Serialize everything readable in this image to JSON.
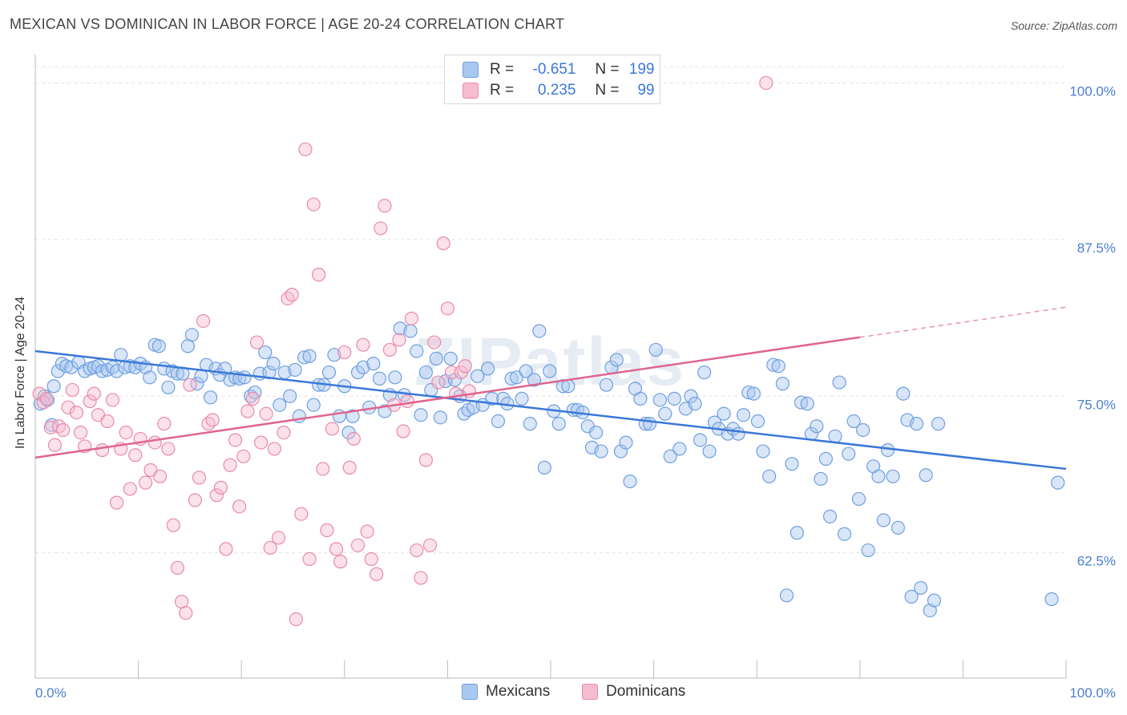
{
  "title": "MEXICAN VS DOMINICAN IN LABOR FORCE | AGE 20-24 CORRELATION CHART",
  "source": "Source: ZipAtlas.com",
  "watermark": "ZIPatlas",
  "legend": {
    "r_label": "R =",
    "n_label": "N =",
    "rows": [
      {
        "r": "-0.651",
        "n": "199",
        "color": "#a9c8f0",
        "border": "#6f9fe0"
      },
      {
        "r": "0.235",
        "n": "99",
        "color": "#f6bcd0",
        "border": "#e98aab"
      }
    ]
  },
  "bottom_legend": [
    "Mexicans",
    "Dominicans"
  ],
  "chart_data": {
    "type": "scatter",
    "title": "MEXICAN VS DOMINICAN IN LABOR FORCE | AGE 20-24 CORRELATION CHART",
    "xlabel": "",
    "ylabel": "In Labor Force | Age 20-24",
    "xlim": [
      0,
      100
    ],
    "ylim": [
      52.5,
      101.5
    ],
    "x_tick_labels": [
      "0.0%",
      "100.0%"
    ],
    "y_ticks": [
      62.5,
      75.0,
      87.5,
      100.0
    ],
    "y_tick_labels": [
      "62.5%",
      "75.0%",
      "87.5%",
      "100.0%"
    ],
    "grid": "horizontal dashed",
    "series": [
      {
        "name": "Mexicans",
        "color": "#6f9fe0",
        "fill": "#a9c8f0",
        "line_color": "#3b78d8",
        "r": -0.651,
        "n": 199,
        "trend": {
          "x": [
            0,
            100
          ],
          "y": [
            78.6,
            69.2
          ]
        },
        "points": [
          [
            0.5,
            74.4
          ],
          [
            0.9,
            75.0
          ],
          [
            1.2,
            74.7
          ],
          [
            1.6,
            72.7
          ],
          [
            1.8,
            75.8
          ],
          [
            2.2,
            77.0
          ],
          [
            2.6,
            77.6
          ],
          [
            3.0,
            77.4
          ],
          [
            3.5,
            77.3
          ],
          [
            4.2,
            77.7
          ],
          [
            4.8,
            77.0
          ],
          [
            5.3,
            77.2
          ],
          [
            5.7,
            77.3
          ],
          [
            6.1,
            77.4
          ],
          [
            6.5,
            77.0
          ],
          [
            7.0,
            77.1
          ],
          [
            7.5,
            77.3
          ],
          [
            7.9,
            77.0
          ],
          [
            8.3,
            78.3
          ],
          [
            8.7,
            77.3
          ],
          [
            9.2,
            77.4
          ],
          [
            9.7,
            77.3
          ],
          [
            10.2,
            77.6
          ],
          [
            10.7,
            77.3
          ],
          [
            11.1,
            76.5
          ],
          [
            11.6,
            79.1
          ],
          [
            12.0,
            79.0
          ],
          [
            12.5,
            77.2
          ],
          [
            12.9,
            75.7
          ],
          [
            13.3,
            77.0
          ],
          [
            13.8,
            76.8
          ],
          [
            14.3,
            76.8
          ],
          [
            14.8,
            79.0
          ],
          [
            15.2,
            79.9
          ],
          [
            15.7,
            76.0
          ],
          [
            16.1,
            76.6
          ],
          [
            16.6,
            77.5
          ],
          [
            17.0,
            74.9
          ],
          [
            17.5,
            77.2
          ],
          [
            17.9,
            76.7
          ],
          [
            18.4,
            77.2
          ],
          [
            18.9,
            76.3
          ],
          [
            19.4,
            76.5
          ],
          [
            19.8,
            76.4
          ],
          [
            20.3,
            76.5
          ],
          [
            20.9,
            75.0
          ],
          [
            21.3,
            75.3
          ],
          [
            21.8,
            76.8
          ],
          [
            22.3,
            78.5
          ],
          [
            22.7,
            76.9
          ],
          [
            23.1,
            77.6
          ],
          [
            23.7,
            74.3
          ],
          [
            24.2,
            76.9
          ],
          [
            24.7,
            75.0
          ],
          [
            25.2,
            77.1
          ],
          [
            25.6,
            73.4
          ],
          [
            26.1,
            78.1
          ],
          [
            26.6,
            78.2
          ],
          [
            27.0,
            74.3
          ],
          [
            27.5,
            75.9
          ],
          [
            28.0,
            75.9
          ],
          [
            28.5,
            76.9
          ],
          [
            29.0,
            78.3
          ],
          [
            29.5,
            73.4
          ],
          [
            30.0,
            75.8
          ],
          [
            30.4,
            72.1
          ],
          [
            30.8,
            73.4
          ],
          [
            31.3,
            76.9
          ],
          [
            31.8,
            77.3
          ],
          [
            32.4,
            74.1
          ],
          [
            32.8,
            77.6
          ],
          [
            33.4,
            76.4
          ],
          [
            33.9,
            73.8
          ],
          [
            34.4,
            75.1
          ],
          [
            34.9,
            76.5
          ],
          [
            35.4,
            80.4
          ],
          [
            35.8,
            75.1
          ],
          [
            36.4,
            80.2
          ],
          [
            37.0,
            78.6
          ],
          [
            37.4,
            73.5
          ],
          [
            37.9,
            76.9
          ],
          [
            38.4,
            75.5
          ],
          [
            38.9,
            78.0
          ],
          [
            39.3,
            73.3
          ],
          [
            39.8,
            76.2
          ],
          [
            40.3,
            78.0
          ],
          [
            40.7,
            76.3
          ],
          [
            41.2,
            75.0
          ],
          [
            41.6,
            73.6
          ],
          [
            42.0,
            73.9
          ],
          [
            42.5,
            74.1
          ],
          [
            42.9,
            76.6
          ],
          [
            43.4,
            74.3
          ],
          [
            43.9,
            77.2
          ],
          [
            44.3,
            74.8
          ],
          [
            44.9,
            73.0
          ],
          [
            45.4,
            74.8
          ],
          [
            45.8,
            74.4
          ],
          [
            46.2,
            76.4
          ],
          [
            46.7,
            76.5
          ],
          [
            47.2,
            74.8
          ],
          [
            47.6,
            77.0
          ],
          [
            48.0,
            72.8
          ],
          [
            48.4,
            76.3
          ],
          [
            48.9,
            80.2
          ],
          [
            49.4,
            69.3
          ],
          [
            49.9,
            77.0
          ],
          [
            50.3,
            73.8
          ],
          [
            50.8,
            72.8
          ],
          [
            51.2,
            75.8
          ],
          [
            51.7,
            75.8
          ],
          [
            52.2,
            73.9
          ],
          [
            52.6,
            73.9
          ],
          [
            53.1,
            73.7
          ],
          [
            53.6,
            72.6
          ],
          [
            54.0,
            70.9
          ],
          [
            54.4,
            72.1
          ],
          [
            54.9,
            70.6
          ],
          [
            55.4,
            75.9
          ],
          [
            55.9,
            77.3
          ],
          [
            56.4,
            77.9
          ],
          [
            56.8,
            70.6
          ],
          [
            57.3,
            71.3
          ],
          [
            57.7,
            68.2
          ],
          [
            58.2,
            75.6
          ],
          [
            58.7,
            74.8
          ],
          [
            59.2,
            72.8
          ],
          [
            59.6,
            72.8
          ],
          [
            60.2,
            78.7
          ],
          [
            60.6,
            74.7
          ],
          [
            61.1,
            73.6
          ],
          [
            61.6,
            70.2
          ],
          [
            62.0,
            74.8
          ],
          [
            62.5,
            70.8
          ],
          [
            63.1,
            74.0
          ],
          [
            63.6,
            75.0
          ],
          [
            64.0,
            74.4
          ],
          [
            64.5,
            71.5
          ],
          [
            64.9,
            76.9
          ],
          [
            65.4,
            70.6
          ],
          [
            65.9,
            72.9
          ],
          [
            66.3,
            72.4
          ],
          [
            66.8,
            73.6
          ],
          [
            67.2,
            72.0
          ],
          [
            67.7,
            72.4
          ],
          [
            68.2,
            72.0
          ],
          [
            68.7,
            73.5
          ],
          [
            69.2,
            75.3
          ],
          [
            69.7,
            75.2
          ],
          [
            70.1,
            73.0
          ],
          [
            70.6,
            70.6
          ],
          [
            71.2,
            68.6
          ],
          [
            71.6,
            77.5
          ],
          [
            72.1,
            77.4
          ],
          [
            72.5,
            76.0
          ],
          [
            72.9,
            59.1
          ],
          [
            73.4,
            69.6
          ],
          [
            73.9,
            64.1
          ],
          [
            74.3,
            74.5
          ],
          [
            74.9,
            74.4
          ],
          [
            75.3,
            72.0
          ],
          [
            75.8,
            72.6
          ],
          [
            76.2,
            68.4
          ],
          [
            76.7,
            70.0
          ],
          [
            77.1,
            65.4
          ],
          [
            77.6,
            71.8
          ],
          [
            78.0,
            76.1
          ],
          [
            78.5,
            64.0
          ],
          [
            78.9,
            70.4
          ],
          [
            79.4,
            73.0
          ],
          [
            79.9,
            66.8
          ],
          [
            80.3,
            72.3
          ],
          [
            80.8,
            62.7
          ],
          [
            81.3,
            69.4
          ],
          [
            81.8,
            68.6
          ],
          [
            82.3,
            65.1
          ],
          [
            82.7,
            70.7
          ],
          [
            83.2,
            68.6
          ],
          [
            83.7,
            64.5
          ],
          [
            84.2,
            75.2
          ],
          [
            84.6,
            73.1
          ],
          [
            85.0,
            59.0
          ],
          [
            85.5,
            72.8
          ],
          [
            85.9,
            59.7
          ],
          [
            86.4,
            68.7
          ],
          [
            86.8,
            57.9
          ],
          [
            87.2,
            58.7
          ],
          [
            87.6,
            72.8
          ],
          [
            98.6,
            58.8
          ],
          [
            99.2,
            68.1
          ]
        ]
      },
      {
        "name": "Dominicans",
        "color": "#e98aab",
        "fill": "#f6bcd0",
        "line_color": "#e0648f",
        "r": 0.235,
        "n": 99,
        "trend": {
          "x": [
            0,
            80
          ],
          "y": [
            70.1,
            79.7
          ]
        },
        "trend_extension": {
          "x": [
            80,
            100
          ],
          "y": [
            79.7,
            82.1
          ]
        },
        "points": [
          [
            0.4,
            75.2
          ],
          [
            0.8,
            74.5
          ],
          [
            1.1,
            74.8
          ],
          [
            1.5,
            72.5
          ],
          [
            1.9,
            71.1
          ],
          [
            2.3,
            72.6
          ],
          [
            2.7,
            72.3
          ],
          [
            3.2,
            74.1
          ],
          [
            3.6,
            75.5
          ],
          [
            4.0,
            73.7
          ],
          [
            4.4,
            72.1
          ],
          [
            4.8,
            71.0
          ],
          [
            5.3,
            74.6
          ],
          [
            5.7,
            75.2
          ],
          [
            6.1,
            73.5
          ],
          [
            6.5,
            70.7
          ],
          [
            7.0,
            73.0
          ],
          [
            7.5,
            74.7
          ],
          [
            7.9,
            66.5
          ],
          [
            8.3,
            70.8
          ],
          [
            8.8,
            72.1
          ],
          [
            9.2,
            67.6
          ],
          [
            9.7,
            70.3
          ],
          [
            10.2,
            71.6
          ],
          [
            10.7,
            68.1
          ],
          [
            11.2,
            69.1
          ],
          [
            11.6,
            71.3
          ],
          [
            12.1,
            68.6
          ],
          [
            12.5,
            72.8
          ],
          [
            12.9,
            70.8
          ],
          [
            13.4,
            64.7
          ],
          [
            13.8,
            61.3
          ],
          [
            14.2,
            58.6
          ],
          [
            14.6,
            57.7
          ],
          [
            15.0,
            75.9
          ],
          [
            15.5,
            66.7
          ],
          [
            15.9,
            68.5
          ],
          [
            16.3,
            81.0
          ],
          [
            16.8,
            72.8
          ],
          [
            17.2,
            73.1
          ],
          [
            17.6,
            67.1
          ],
          [
            18.0,
            67.7
          ],
          [
            18.5,
            62.8
          ],
          [
            18.9,
            69.5
          ],
          [
            19.4,
            71.5
          ],
          [
            19.8,
            66.2
          ],
          [
            20.2,
            70.2
          ],
          [
            20.6,
            73.8
          ],
          [
            21.1,
            74.8
          ],
          [
            21.5,
            79.3
          ],
          [
            21.9,
            71.3
          ],
          [
            22.4,
            73.6
          ],
          [
            22.8,
            62.9
          ],
          [
            23.2,
            70.8
          ],
          [
            23.6,
            63.7
          ],
          [
            24.1,
            72.1
          ],
          [
            24.5,
            82.8
          ],
          [
            24.9,
            83.1
          ],
          [
            25.3,
            57.2
          ],
          [
            25.8,
            65.6
          ],
          [
            26.2,
            94.7
          ],
          [
            26.6,
            62.0
          ],
          [
            27.0,
            90.3
          ],
          [
            27.5,
            84.7
          ],
          [
            27.9,
            69.2
          ],
          [
            28.3,
            64.3
          ],
          [
            28.8,
            72.4
          ],
          [
            29.2,
            62.8
          ],
          [
            29.6,
            61.8
          ],
          [
            30.0,
            78.5
          ],
          [
            30.5,
            69.3
          ],
          [
            30.9,
            71.6
          ],
          [
            31.3,
            63.1
          ],
          [
            31.8,
            79.1
          ],
          [
            32.2,
            64.2
          ],
          [
            32.6,
            62.0
          ],
          [
            33.1,
            60.8
          ],
          [
            33.5,
            88.4
          ],
          [
            33.9,
            90.2
          ],
          [
            34.4,
            78.7
          ],
          [
            34.8,
            74.3
          ],
          [
            35.3,
            79.5
          ],
          [
            35.7,
            72.2
          ],
          [
            36.1,
            74.6
          ],
          [
            36.5,
            81.2
          ],
          [
            37.0,
            62.7
          ],
          [
            37.4,
            60.5
          ],
          [
            37.9,
            69.9
          ],
          [
            38.3,
            63.1
          ],
          [
            38.7,
            79.3
          ],
          [
            39.1,
            76.1
          ],
          [
            39.6,
            87.2
          ],
          [
            40.0,
            82.0
          ],
          [
            40.4,
            76.9
          ],
          [
            40.8,
            75.2
          ],
          [
            41.3,
            76.9
          ],
          [
            41.7,
            77.4
          ],
          [
            42.1,
            75.4
          ],
          [
            70.9,
            100.0
          ]
        ]
      }
    ]
  }
}
